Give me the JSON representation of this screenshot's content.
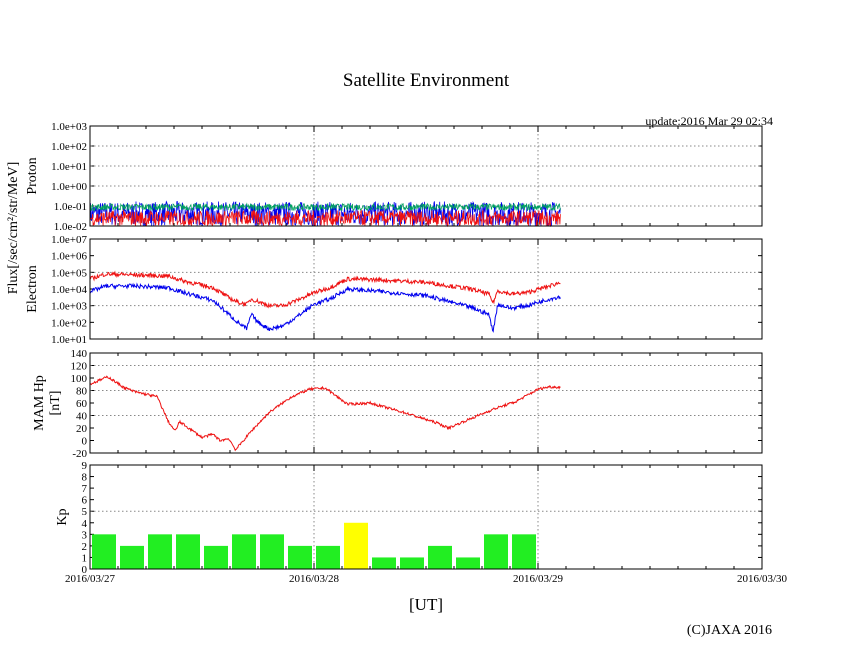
{
  "title": "Satellite Environment",
  "update": "update:2016 Mar 29 02:34",
  "copyright": "(C)JAXA 2016",
  "xlabel": "[UT]",
  "shared_ylabel": "Flux[/sec/cm²/str/MeV]",
  "x_ticks": [
    "2016/03/27",
    "2016/03/28",
    "2016/03/29",
    "2016/03/30"
  ],
  "colors": {
    "red": "#ee1111",
    "blue": "#0000ee",
    "green": "#00a060",
    "kp_normal": "#22ee22",
    "kp_high": "#ffff00",
    "grid": "#888888"
  },
  "chart_data": [
    {
      "type": "line",
      "ylabel": "Proton",
      "yscale": "log",
      "ylim": [
        0.01,
        1000
      ],
      "y_ticks": [
        "1.0e-02",
        "1.0e-01",
        "1.0e+00",
        "1.0e+01",
        "1.0e+02",
        "1.0e+03"
      ],
      "xlim_days": [
        0,
        3
      ],
      "data_until_day": 2.1,
      "series": [
        {
          "color": "blue",
          "level": 0.08,
          "noise_min": 0.01,
          "noise_max": 0.17
        },
        {
          "color": "green",
          "level": 0.09,
          "noise_min": 0.06,
          "noise_max": 0.13
        },
        {
          "color": "red",
          "level": 0.03,
          "noise_min": 0.01,
          "noise_max": 0.06
        }
      ]
    },
    {
      "type": "line",
      "ylabel": "Electron",
      "yscale": "log",
      "ylim": [
        10,
        10000000
      ],
      "y_ticks": [
        "1.0e+01",
        "1.0e+02",
        "1.0e+03",
        "1.0e+04",
        "1.0e+05",
        "1.0e+06",
        "1.0e+07"
      ],
      "series": [
        {
          "color": "red",
          "x": [
            0,
            0.07,
            0.2,
            0.35,
            0.42,
            0.55,
            0.62,
            0.66,
            0.7,
            0.72,
            0.75,
            0.8,
            0.86,
            0.92,
            1.0,
            1.07,
            1.15,
            1.3,
            1.5,
            1.7,
            1.78,
            1.8,
            1.82,
            1.88,
            1.95,
            2.05,
            2.1
          ],
          "y": [
            40000,
            80000,
            70000,
            60000,
            30000,
            12000,
            3000,
            1600,
            1200,
            2500,
            1800,
            1000,
            1000,
            2000,
            6000,
            12000,
            40000,
            35000,
            25000,
            10000,
            5000,
            1500,
            8000,
            5000,
            6000,
            15000,
            25000
          ]
        },
        {
          "color": "blue",
          "x": [
            0,
            0.07,
            0.2,
            0.35,
            0.42,
            0.55,
            0.62,
            0.66,
            0.7,
            0.72,
            0.75,
            0.8,
            0.86,
            0.92,
            1.0,
            1.07,
            1.15,
            1.3,
            1.5,
            1.7,
            1.78,
            1.8,
            1.82,
            1.88,
            1.95,
            2.05,
            2.1
          ],
          "y": [
            7000,
            15000,
            15000,
            12000,
            6000,
            2000,
            300,
            100,
            40,
            300,
            100,
            40,
            60,
            200,
            1200,
            2500,
            10000,
            7000,
            4000,
            800,
            300,
            30,
            1200,
            700,
            1000,
            2500,
            3500
          ]
        }
      ]
    },
    {
      "type": "line",
      "ylabel": "MAM Hp [nT]",
      "ylabel_lines": [
        "MAM Hp",
        "[nT]"
      ],
      "ylim": [
        -20,
        140
      ],
      "y_ticks": [
        -20,
        0,
        20,
        40,
        60,
        80,
        100,
        120,
        140
      ],
      "series": [
        {
          "color": "red",
          "x": [
            0,
            0.08,
            0.15,
            0.2,
            0.3,
            0.35,
            0.38,
            0.4,
            0.44,
            0.5,
            0.55,
            0.58,
            0.62,
            0.65,
            0.72,
            0.8,
            0.9,
            0.98,
            1.05,
            1.15,
            1.25,
            1.4,
            1.55,
            1.6,
            1.7,
            1.8,
            1.9,
            2.0,
            2.05,
            2.1
          ],
          "y": [
            90,
            102,
            85,
            78,
            70,
            30,
            15,
            30,
            20,
            5,
            10,
            0,
            3,
            -15,
            15,
            45,
            70,
            82,
            84,
            58,
            60,
            45,
            28,
            20,
            35,
            50,
            62,
            82,
            86,
            85
          ]
        }
      ]
    },
    {
      "type": "bar",
      "ylabel": "Kp",
      "ylim": [
        0,
        9
      ],
      "y_ticks": [
        0,
        1,
        2,
        3,
        4,
        5,
        6,
        7,
        8,
        9
      ],
      "bin_hours": 3,
      "values": [
        3,
        2,
        3,
        3,
        2,
        3,
        3,
        2,
        2,
        4,
        1,
        1,
        2,
        1,
        3,
        3
      ],
      "threshold": 4
    }
  ]
}
